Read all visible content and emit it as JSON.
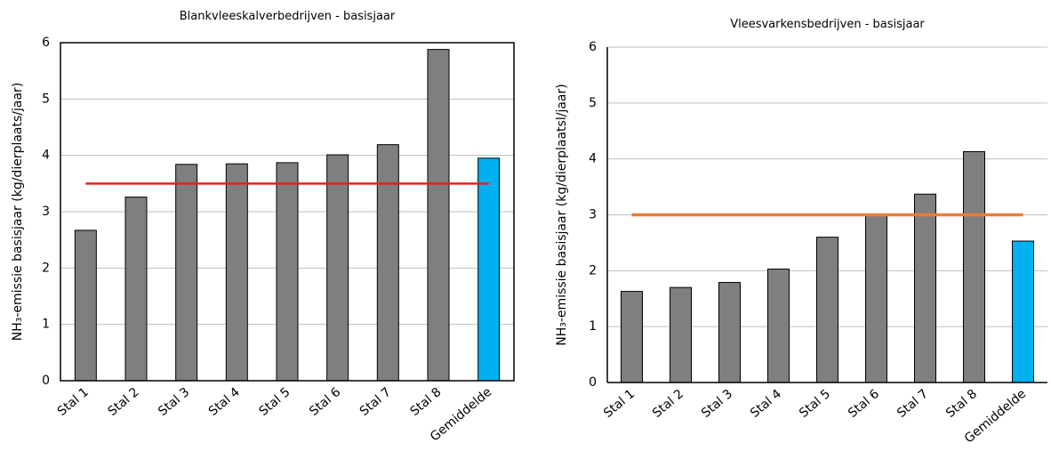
{
  "chart_data": [
    {
      "type": "bar",
      "title": "Blankvleeskalverbedrijven - basisjaar",
      "y_label": "NH₃-emissie basisjaar (kg/dierplaats/jaar)",
      "categories": [
        "Stal 1",
        "Stal 2",
        "Stal 3",
        "Stal 4",
        "Stal 5",
        "Stal 6",
        "Stal 7",
        "Stal 8",
        "Gemiddelde"
      ],
      "values": [
        2.67,
        3.26,
        3.84,
        3.85,
        3.87,
        4.01,
        4.19,
        5.88,
        3.95
      ],
      "colors": [
        "#7f7f7f",
        "#7f7f7f",
        "#7f7f7f",
        "#7f7f7f",
        "#7f7f7f",
        "#7f7f7f",
        "#7f7f7f",
        "#7f7f7f",
        "#00b0f0"
      ],
      "reference_line": {
        "value": 3.5,
        "color": "#e8201e"
      },
      "ylim": [
        0,
        6
      ],
      "yticks": [
        0,
        1,
        2,
        3,
        4,
        5,
        6
      ],
      "grid": true,
      "frame": true
    },
    {
      "type": "bar",
      "title": "Vleesvarkensbedrijven - basisjaar",
      "y_label": "NH₃-emissie basisjaar (kg/dierplaatsl/jaar)",
      "categories": [
        "Stal 1",
        "Stal 2",
        "Stal 3",
        "Stal 4",
        "Stal 5",
        "Stal 6",
        "Stal 7",
        "Stal 8",
        "Gemiddelde"
      ],
      "values": [
        1.63,
        1.7,
        1.79,
        2.03,
        2.6,
        3.0,
        3.37,
        4.13,
        2.53
      ],
      "colors": [
        "#7f7f7f",
        "#7f7f7f",
        "#7f7f7f",
        "#7f7f7f",
        "#7f7f7f",
        "#7f7f7f",
        "#7f7f7f",
        "#7f7f7f",
        "#00b0f0"
      ],
      "reference_line": {
        "value": 3.0,
        "color": "#ed7d31"
      },
      "ylim": [
        0,
        6
      ],
      "yticks": [
        0,
        1,
        2,
        3,
        4,
        5,
        6
      ],
      "grid": true,
      "frame": false
    }
  ]
}
